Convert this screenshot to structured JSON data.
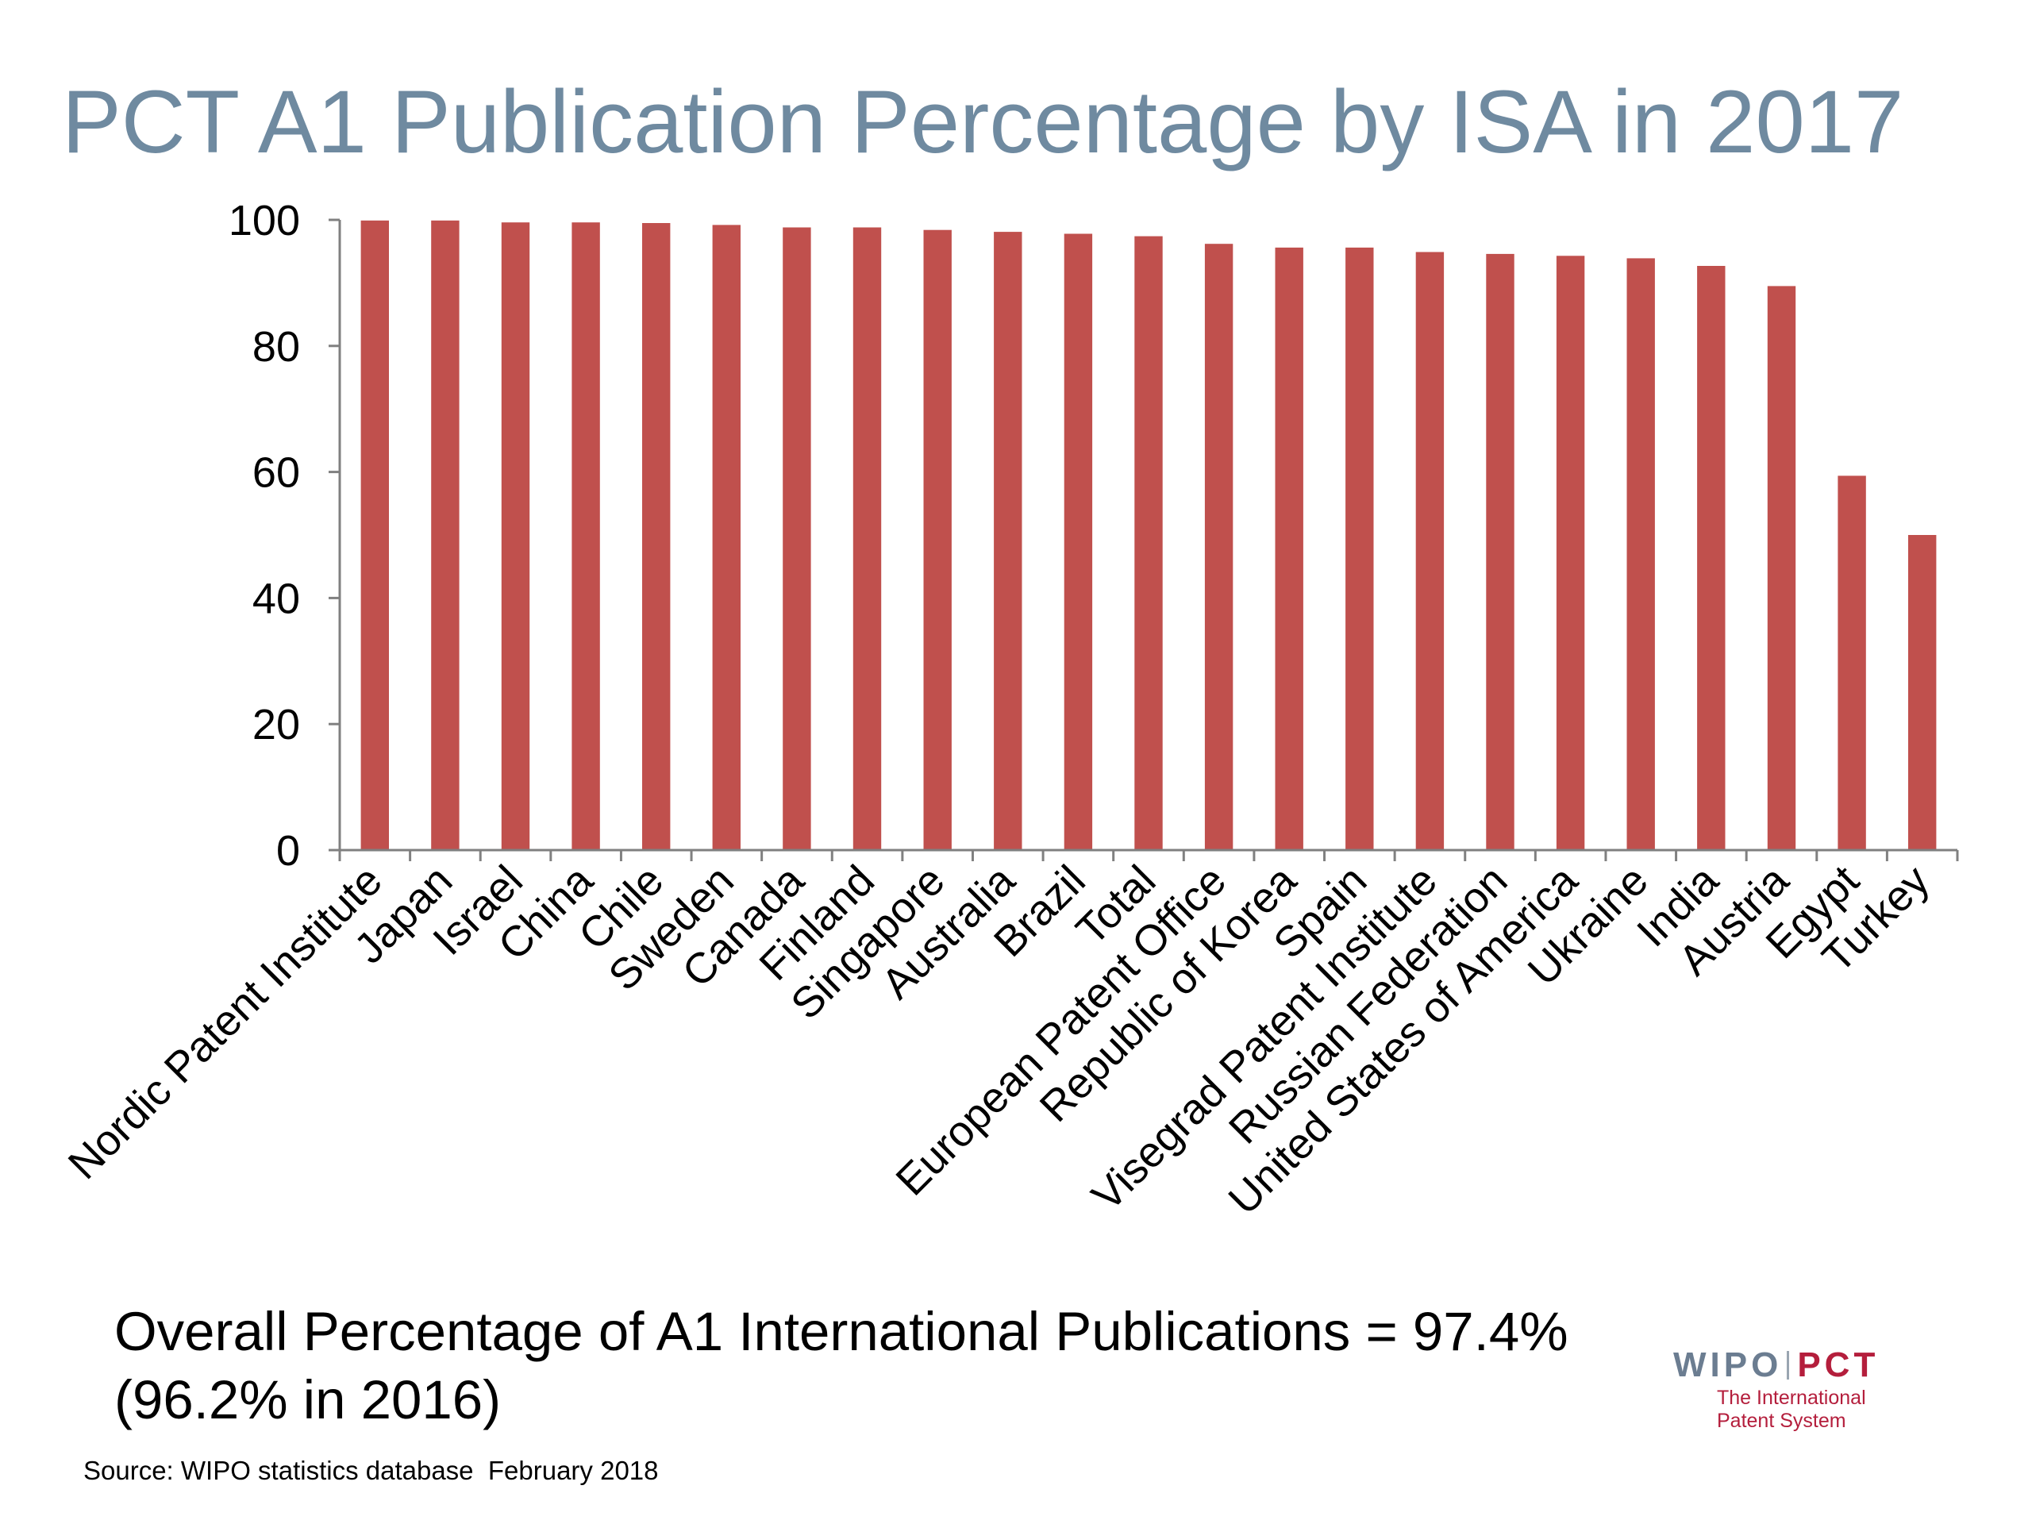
{
  "slide": {
    "title": "PCT A1 Publication Percentage by ISA in 2017",
    "summary_line1": "Overall Percentage of A1 International Publications = 97.4%",
    "summary_line2": "(96.2% in 2016)",
    "source": "Source: WIPO statistics database  February 2018"
  },
  "logo": {
    "wipo": "WIPO",
    "pct": "PCT",
    "tagline_line1": "The International",
    "tagline_line2": "Patent System"
  },
  "colors": {
    "title": "#6f8aa0",
    "bar": "#c0504d",
    "axis": "#808080",
    "text": "#000000",
    "logo_wipo": "#6b7d91",
    "logo_pct": "#b41e3c"
  },
  "chart_data": {
    "type": "bar",
    "title": "PCT A1 Publication Percentage by ISA in 2017",
    "xlabel": "",
    "ylabel": "",
    "ylim": [
      0,
      100
    ],
    "yticks": [
      0,
      20,
      40,
      60,
      80,
      100
    ],
    "grid": false,
    "legend": "none",
    "categories": [
      "Nordic Patent Institute",
      "Japan",
      "Israel",
      "China",
      "Chile",
      "Sweden",
      "Canada",
      "Finland",
      "Singapore",
      "Australia",
      "Brazil",
      "Total",
      "European Patent Office",
      "Republic of Korea",
      "Spain",
      "Visegrad Patent Institute",
      "Russian Federation",
      "United States of America",
      "Ukraine",
      "India",
      "Austria",
      "Egypt",
      "Turkey"
    ],
    "values": [
      99.9,
      99.9,
      99.6,
      99.6,
      99.5,
      99.2,
      98.8,
      98.8,
      98.4,
      98.1,
      97.8,
      97.4,
      96.2,
      95.6,
      95.6,
      94.9,
      94.6,
      94.3,
      93.9,
      92.7,
      89.5,
      59.4,
      50.0
    ]
  }
}
